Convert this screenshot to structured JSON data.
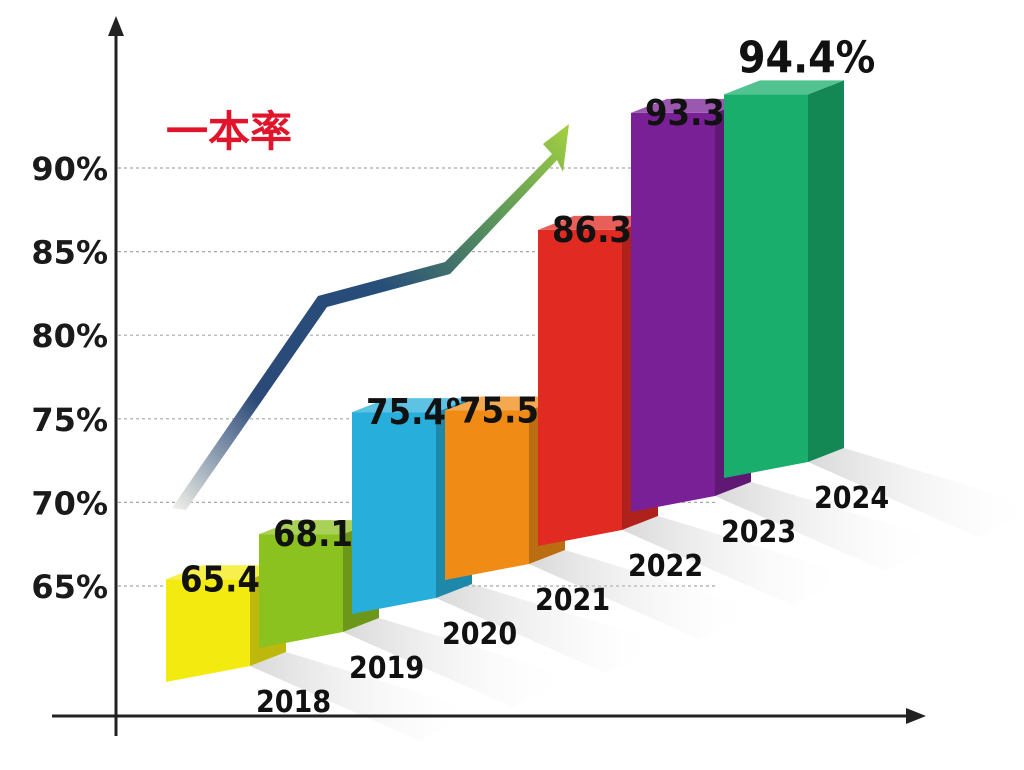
{
  "chart_data": {
    "type": "bar",
    "title": "一本率",
    "categories": [
      "2018",
      "2019",
      "2020",
      "2021",
      "2022",
      "2023",
      "2024"
    ],
    "values": [
      65.4,
      68.1,
      75.4,
      75.5,
      86.3,
      93.3,
      94.4
    ],
    "value_labels": [
      "65.4%",
      "68.1%",
      "75.4%",
      "75.5%",
      "86.3%",
      "93.3%",
      "94.4%"
    ],
    "yticks": [
      "65%",
      "70%",
      "75%",
      "80%",
      "85%",
      "90%"
    ],
    "ytick_values": [
      65,
      70,
      75,
      80,
      85,
      90
    ],
    "grid": true,
    "trend_arrow": true,
    "colors": {
      "title": "#e0152b",
      "bars": [
        "#f3ea10",
        "#8cc21f",
        "#27aedb",
        "#f08c16",
        "#e02a22",
        "#7a2096",
        "#1aae6c"
      ]
    }
  }
}
